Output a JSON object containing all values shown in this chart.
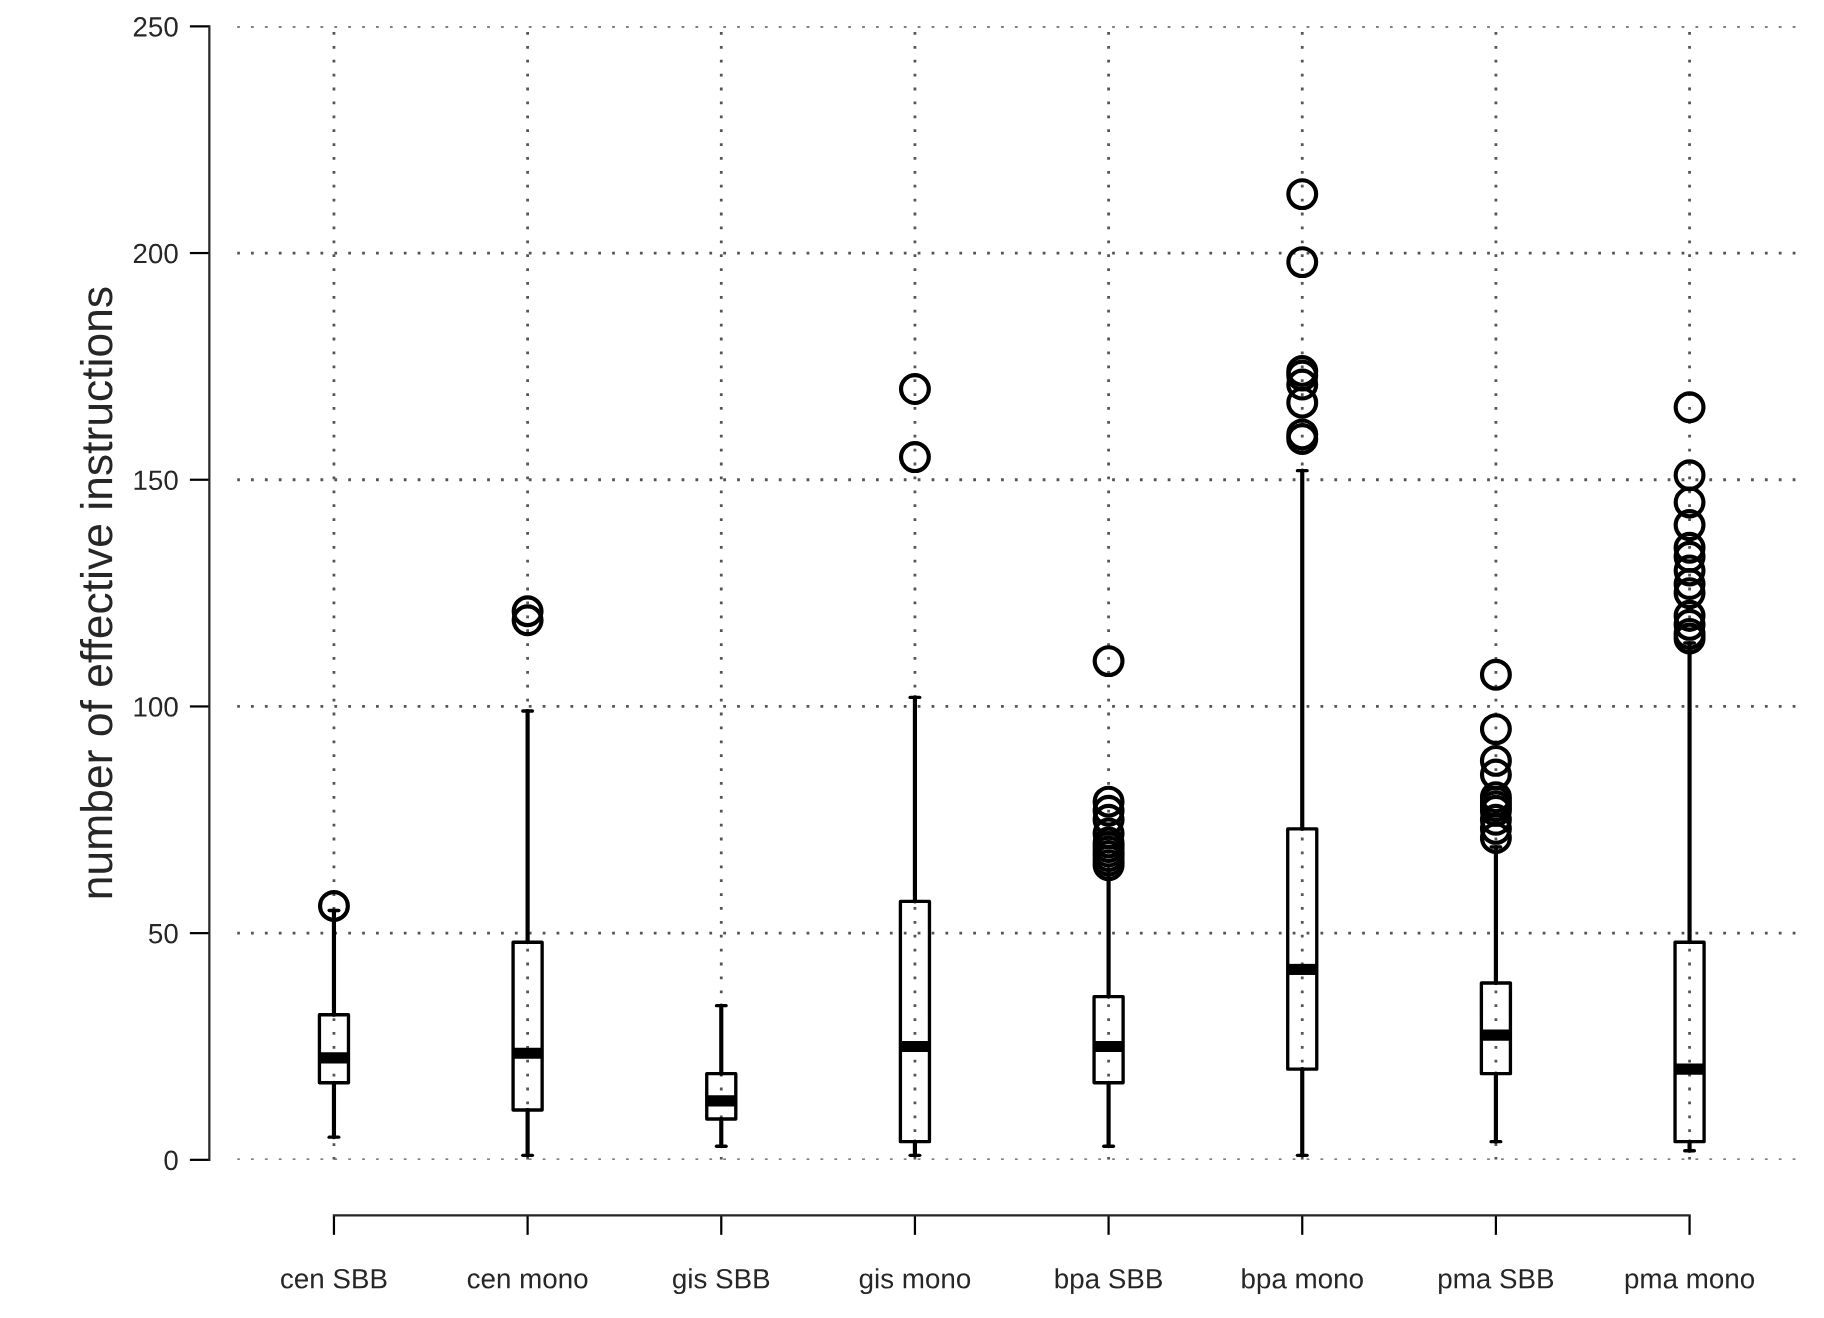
{
  "chart_data": {
    "type": "box",
    "ylabel": "number of effective instructions",
    "categories": [
      "cen SBB",
      "cen mono",
      "gis SBB",
      "gis mono",
      "bpa SBB",
      "bpa mono",
      "pma SBB",
      "pma mono"
    ],
    "ylim": [
      0,
      250
    ],
    "yticks": [
      0,
      50,
      100,
      150,
      200,
      250
    ],
    "grid": true,
    "marker": "circle",
    "boxes": [
      {
        "low": 5,
        "q1": 17,
        "median": 22.5,
        "q3": 32,
        "high": 55,
        "outliers": [
          56
        ]
      },
      {
        "low": 1,
        "q1": 11,
        "median": 23.5,
        "q3": 48,
        "high": 99,
        "outliers": [
          119,
          121
        ]
      },
      {
        "low": 3,
        "q1": 9,
        "median": 13,
        "q3": 19,
        "high": 34
      },
      {
        "low": 1,
        "q1": 4,
        "median": 25,
        "q3": 57,
        "high": 102,
        "outliers": [
          155,
          170
        ]
      },
      {
        "low": 3,
        "q1": 17,
        "median": 25,
        "q3": 36,
        "high": 64,
        "outliers": [
          65,
          66,
          67,
          68,
          69,
          70,
          72,
          75,
          77,
          79,
          110
        ]
      },
      {
        "low": 1,
        "q1": 20,
        "median": 42,
        "q3": 73,
        "high": 152,
        "outliers": [
          159,
          160,
          167,
          171,
          173,
          174,
          198,
          213
        ]
      },
      {
        "low": 4,
        "q1": 19,
        "median": 27.5,
        "q3": 39,
        "high": 69,
        "outliers": [
          71,
          73,
          75,
          77,
          78,
          79,
          80,
          85,
          88,
          95,
          107
        ]
      },
      {
        "low": 2,
        "q1": 4,
        "median": 20,
        "q3": 48,
        "high": 114,
        "outliers": [
          115,
          116,
          118,
          120,
          125,
          127,
          130,
          133,
          135,
          140,
          145,
          151,
          166
        ]
      }
    ]
  }
}
